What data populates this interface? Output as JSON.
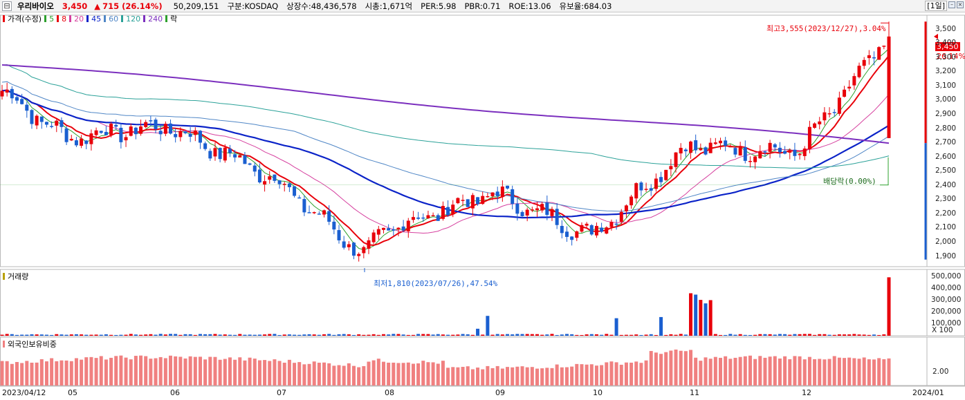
{
  "header": {
    "stock_name": "우리바이오",
    "price": "3,450",
    "change_arrow": "▲",
    "change": "715",
    "change_pct": "(26.14%)",
    "volume": "50,209,151",
    "market": "구분:KOSDAQ",
    "shares": "상장수:48,436,578",
    "market_cap": "시총:1,671억",
    "per": "PER:5.98",
    "pbr": "PBR:0.71",
    "roe": "ROE:13.06",
    "float_ratio": "유보율:684.03",
    "period": "[1일]",
    "minimize_glyph": "–",
    "close_glyph": "×"
  },
  "price_panel": {
    "legend_title": "가격(수정)",
    "ma_labels": [
      "5",
      "8",
      "20",
      "45",
      "60",
      "120",
      "240"
    ],
    "ex_div_label": "락",
    "high_annotation": "최고3,555(2023/12/27),3.04%",
    "low_annotation": "최저1,810(2023/07/26),47.54%",
    "dividend_annotation": "배당락(0.00%)",
    "current_price_tag": "3,450",
    "current_pct_tag": "26.14%",
    "y_ticks": [
      "3,500",
      "3,400",
      "3,300",
      "3,200",
      "3,100",
      "3,000",
      "2,900",
      "2,800",
      "2,700",
      "2,600",
      "2,500",
      "2,400",
      "2,300",
      "2,200",
      "2,100",
      "2,000",
      "1,900"
    ]
  },
  "volume_panel": {
    "legend_title": "거래량",
    "y_ticks": [
      "500,000",
      "400,000",
      "300,000",
      "200,000",
      "100,000"
    ],
    "unit_label": "X 100"
  },
  "foreign_panel": {
    "legend_title": "외국인보유비중",
    "y_ticks": [
      "2.00"
    ]
  },
  "x_axis": {
    "labels": [
      "2023/04/12",
      "05",
      "06",
      "07",
      "08",
      "09",
      "10",
      "11",
      "12",
      "2024/01"
    ]
  },
  "colors": {
    "up": "#e8000a",
    "down": "#1a5fd0",
    "ma5": "#2ca02c",
    "ma8": "#e8000a",
    "ma20": "#d6409f",
    "ma45": "#0b23c8",
    "ma60": "#4f86c6",
    "ma120": "#2aa198",
    "ma240": "#7b2fbe",
    "foreign_bar": "#f08080"
  },
  "chart_data": {
    "type": "candlestick",
    "y_range": [
      1810,
      3555
    ],
    "anchors": [
      {
        "x": "2023/04/12",
        "close": 3080
      },
      {
        "x": "2023/05",
        "close": 2740
      },
      {
        "x": "2023/06",
        "close": 2820
      },
      {
        "x": "2023/07",
        "close": 2450
      },
      {
        "x": "2023/07/26",
        "close": 1900,
        "low": 1810
      },
      {
        "x": "2023/08",
        "close": 2080
      },
      {
        "x": "2023/09",
        "close": 2350
      },
      {
        "x": "2023/10",
        "close": 2050
      },
      {
        "x": "2023/11",
        "close": 2680
      },
      {
        "x": "2023/12",
        "close": 2640
      },
      {
        "x": "2023/12/27",
        "close": 3450,
        "high": 3555
      }
    ],
    "volume_peaks": [
      {
        "x": "2023/09",
        "value": 170000
      },
      {
        "x": "2023/10/31",
        "value": 380000
      },
      {
        "x": "2023/12/27",
        "value": 500000
      }
    ],
    "foreign_ratio_reference": 2.0
  }
}
